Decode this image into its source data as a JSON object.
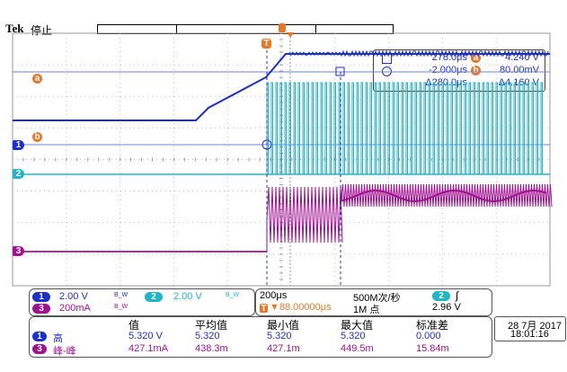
{
  "brand": "Tek",
  "run_state": "停止",
  "trigger_marker": "T",
  "cursor_readout": {
    "a_time": "278.0μs",
    "a_volt": "4.240 V",
    "b_time": "-2.000μs",
    "b_volt": "80.00mV",
    "delta_time": "Δ280.0μs",
    "delta_volt": "Δ4.160 V",
    "a_letter": "a",
    "b_letter": "b"
  },
  "channels": {
    "ch1": {
      "number": "1",
      "scale": "2.00 V",
      "bw": "B_W"
    },
    "ch2": {
      "number": "2",
      "scale": "2.00 V",
      "bw": "B_W"
    },
    "ch3": {
      "number": "3",
      "scale": "200mA",
      "bw": "B_W"
    }
  },
  "horizontal": {
    "time_div": "200μs",
    "sample_rate": "500M次/秒",
    "trigger_pos": "▼88.00000μs",
    "record_length": "1M 点",
    "trigger_source": "2",
    "trigger_slope": "∫",
    "trigger_level": "2.96 V"
  },
  "measurements": {
    "headers": [
      "值",
      "平均值",
      "最小值",
      "最大值",
      "标准差"
    ],
    "rows": [
      {
        "channel": "1",
        "label": "高",
        "values": [
          "5.320 V",
          "5.320",
          "5.320",
          "5.320",
          "0.000"
        ]
      },
      {
        "channel": "3",
        "label": "峰-峰",
        "values": [
          "427.1mA",
          "438.3m",
          "427.1m",
          "449.5m",
          "15.84m"
        ]
      }
    ]
  },
  "date": "28 7月 2017",
  "time": "18:01:16",
  "colors": {
    "ch1": "#1c2fcf",
    "ch2": "#20b6c9",
    "ch3": "#a0128f",
    "cursor_orange": "#e8772a",
    "grid": "#bdbdbd"
  }
}
